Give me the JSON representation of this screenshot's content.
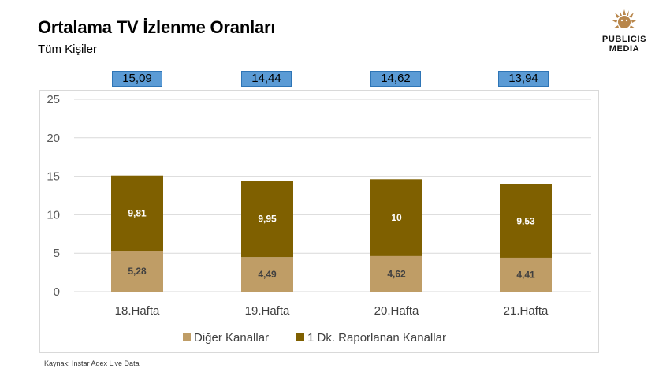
{
  "title": "Ortalama TV İzlenme Oranları",
  "subtitle": "Tüm Kişiler",
  "logo": {
    "line1": "PUBLICIS",
    "line2": "MEDIA"
  },
  "source": "Kaynak: Instar  Adex Live Data",
  "totals": [
    "15,09",
    "14,44",
    "14,62",
    "13,94"
  ],
  "colors": {
    "diger": "#bf9d66",
    "dk": "#7f6000",
    "badge": "#5b9bd5",
    "grid": "#d9d9d9"
  },
  "chart_data": {
    "type": "bar",
    "stacked": true,
    "categories": [
      "18.Hafta",
      "19.Hafta",
      "20.Hafta",
      "21.Hafta"
    ],
    "series": [
      {
        "name": "Diğer Kanallar",
        "values": [
          5.28,
          4.49,
          4.62,
          4.41
        ],
        "labels": [
          "5,28",
          "4,49",
          "4,62",
          "4,41"
        ]
      },
      {
        "name": "1 Dk. Raporlanan Kanallar",
        "values": [
          9.81,
          9.95,
          10,
          9.53
        ],
        "labels": [
          "9,81",
          "9,95",
          "10",
          "9,53"
        ]
      }
    ],
    "ylim": [
      0,
      25
    ],
    "yticks": [
      0,
      5,
      10,
      15,
      20,
      25
    ],
    "grid": true,
    "legend": "bottom"
  }
}
